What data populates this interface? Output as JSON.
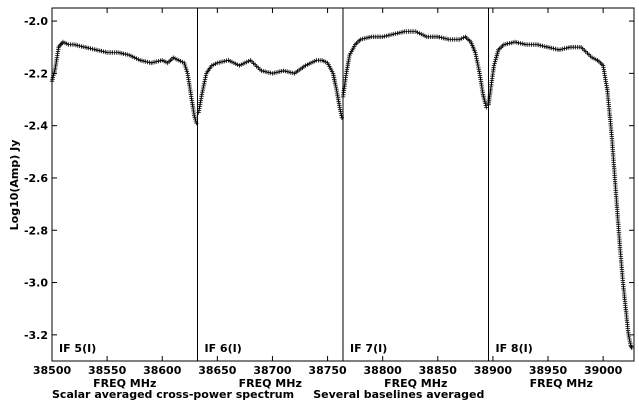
{
  "chart_data": {
    "type": "scatter",
    "marker": "plus",
    "ylabel": "Log10(Amp) Jy",
    "ylim": [
      -3.3,
      -1.95
    ],
    "yticks": [
      -2.0,
      -2.2,
      -2.4,
      -2.6,
      -2.8,
      -3.0,
      -3.2
    ],
    "ytick_labels": [
      "-2.0",
      "-2.2",
      "-2.4",
      "-2.6",
      "-2.8",
      "-3.0",
      "-3.2"
    ],
    "footer": "Scalar averaged cross-power spectrum     Several baselines averaged",
    "panels": [
      {
        "label": "IF 5(I)",
        "xlabel": "FREQ MHz",
        "xlim": [
          38500,
          38632
        ],
        "xticks": [
          38500,
          38550,
          38600
        ],
        "xtick_labels": [
          "38500",
          "38550",
          "38600"
        ],
        "x": [
          38500,
          38503,
          38506,
          38510,
          38515,
          38520,
          38530,
          38540,
          38550,
          38560,
          38570,
          38580,
          38590,
          38600,
          38605,
          38610,
          38615,
          38620,
          38623,
          38626,
          38629,
          38631
        ],
        "y": [
          -2.23,
          -2.18,
          -2.1,
          -2.08,
          -2.09,
          -2.09,
          -2.1,
          -2.11,
          -2.12,
          -2.12,
          -2.13,
          -2.15,
          -2.16,
          -2.15,
          -2.16,
          -2.14,
          -2.15,
          -2.16,
          -2.2,
          -2.28,
          -2.36,
          -2.39
        ]
      },
      {
        "label": "IF 6(I)",
        "xlabel": "FREQ MHz",
        "xlim": [
          38632,
          38764
        ],
        "xticks": [
          38650,
          38700,
          38750
        ],
        "xtick_labels": [
          "38650",
          "38700",
          "38750"
        ],
        "x": [
          38633,
          38636,
          38640,
          38645,
          38650,
          38660,
          38670,
          38680,
          38690,
          38700,
          38710,
          38720,
          38730,
          38740,
          38745,
          38750,
          38755,
          38758,
          38761,
          38763
        ],
        "y": [
          -2.35,
          -2.28,
          -2.2,
          -2.17,
          -2.16,
          -2.15,
          -2.17,
          -2.15,
          -2.19,
          -2.2,
          -2.19,
          -2.2,
          -2.17,
          -2.15,
          -2.15,
          -2.16,
          -2.2,
          -2.26,
          -2.33,
          -2.37
        ]
      },
      {
        "label": "IF 7(I)",
        "xlabel": "FREQ MHz",
        "xlim": [
          38764,
          38896
        ],
        "xticks": [
          38800,
          38850
        ],
        "xtick_labels": [
          "38800",
          "38850"
        ],
        "x": [
          38764,
          38767,
          38770,
          38775,
          38780,
          38790,
          38800,
          38810,
          38820,
          38830,
          38840,
          38850,
          38860,
          38870,
          38875,
          38880,
          38884,
          38888,
          38891,
          38894
        ],
        "y": [
          -2.29,
          -2.2,
          -2.13,
          -2.09,
          -2.07,
          -2.06,
          -2.06,
          -2.05,
          -2.04,
          -2.04,
          -2.06,
          -2.06,
          -2.07,
          -2.07,
          -2.06,
          -2.08,
          -2.12,
          -2.2,
          -2.28,
          -2.33
        ]
      },
      {
        "label": "IF 8(I)",
        "xlabel": "FREQ MHz",
        "xlim": [
          38896,
          39028
        ],
        "xticks": [
          38900,
          38950,
          39000
        ],
        "xtick_labels": [
          "38900",
          "38950",
          "39000"
        ],
        "x": [
          38896,
          38898,
          38901,
          38905,
          38910,
          38920,
          38930,
          38940,
          38950,
          38960,
          38970,
          38980,
          38990,
          38995,
          39000,
          39004,
          39008,
          39012,
          39015,
          39018,
          39021,
          39023,
          39025,
          39026
        ],
        "y": [
          -2.32,
          -2.26,
          -2.17,
          -2.11,
          -2.09,
          -2.08,
          -2.09,
          -2.09,
          -2.1,
          -2.11,
          -2.1,
          -2.1,
          -2.14,
          -2.15,
          -2.17,
          -2.27,
          -2.45,
          -2.68,
          -2.85,
          -3.0,
          -3.12,
          -3.2,
          -3.24,
          -3.25
        ]
      }
    ]
  }
}
